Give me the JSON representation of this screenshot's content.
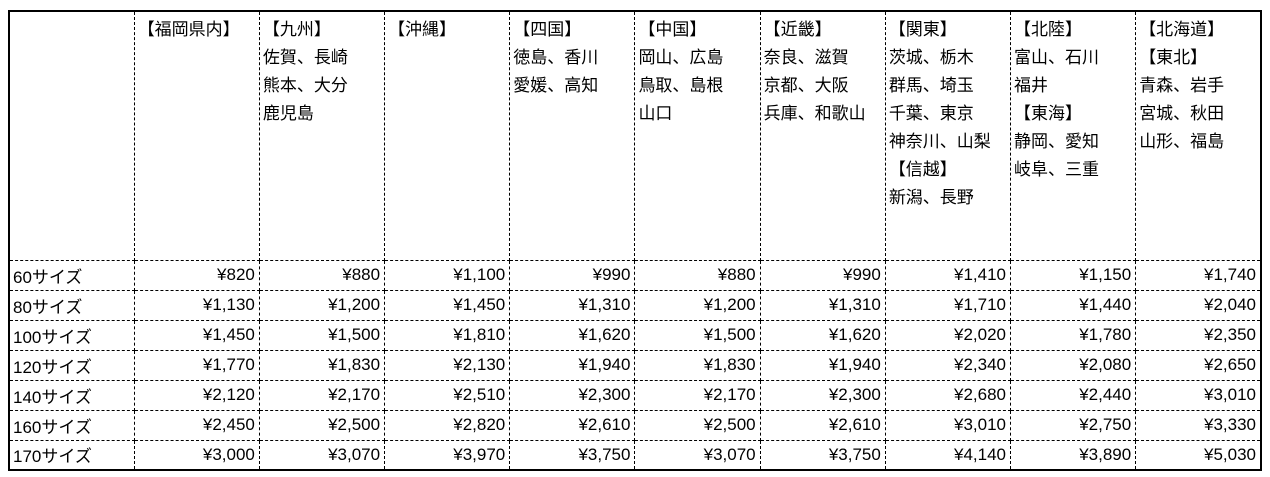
{
  "colors": {
    "background": "#ffffff",
    "border": "#000000",
    "text": "#000000"
  },
  "chart_data": {
    "type": "table",
    "corner_label": "",
    "region_columns": [
      {
        "name": "fukuoka",
        "lines": [
          "【福岡県内】"
        ]
      },
      {
        "name": "kyushu",
        "lines": [
          "【九州】",
          "佐賀、長崎",
          "熊本、大分",
          "鹿児島"
        ]
      },
      {
        "name": "okinawa",
        "lines": [
          "【沖縄】"
        ]
      },
      {
        "name": "shikoku",
        "lines": [
          "【四国】",
          "徳島、香川",
          "愛媛、高知"
        ]
      },
      {
        "name": "chugoku",
        "lines": [
          "【中国】",
          "岡山、広島",
          "鳥取、島根",
          "山口"
        ]
      },
      {
        "name": "kinki",
        "lines": [
          "【近畿】",
          "奈良、滋賀",
          "京都、大阪",
          "兵庫、和歌山"
        ]
      },
      {
        "name": "kanto-shinetsu",
        "lines": [
          "【関東】",
          "茨城、栃木",
          "群馬、埼玉",
          "千葉、東京",
          "神奈川、山梨",
          "【信越】",
          "新潟、長野"
        ]
      },
      {
        "name": "hokuriku-tokai",
        "lines": [
          "【北陸】",
          "富山、石川",
          "福井",
          "【東海】",
          "静岡、愛知",
          "岐阜、三重"
        ]
      },
      {
        "name": "hokkaido-tohoku",
        "lines": [
          "【北海道】",
          "【東北】",
          "青森、岩手",
          "宮城、秋田",
          "山形、福島"
        ]
      }
    ],
    "size_rows": [
      {
        "label": "60サイズ",
        "prices": [
          "¥820",
          "¥880",
          "¥1,100",
          "¥990",
          "¥880",
          "¥990",
          "¥1,410",
          "¥1,150",
          "¥1,740"
        ]
      },
      {
        "label": "80サイズ",
        "prices": [
          "¥1,130",
          "¥1,200",
          "¥1,450",
          "¥1,310",
          "¥1,200",
          "¥1,310",
          "¥1,710",
          "¥1,440",
          "¥2,040"
        ]
      },
      {
        "label": "100サイズ",
        "prices": [
          "¥1,450",
          "¥1,500",
          "¥1,810",
          "¥1,620",
          "¥1,500",
          "¥1,620",
          "¥2,020",
          "¥1,780",
          "¥2,350"
        ]
      },
      {
        "label": "120サイズ",
        "prices": [
          "¥1,770",
          "¥1,830",
          "¥2,130",
          "¥1,940",
          "¥1,830",
          "¥1,940",
          "¥2,340",
          "¥2,080",
          "¥2,650"
        ]
      },
      {
        "label": "140サイズ",
        "prices": [
          "¥2,120",
          "¥2,170",
          "¥2,510",
          "¥2,300",
          "¥2,170",
          "¥2,300",
          "¥2,680",
          "¥2,440",
          "¥3,010"
        ]
      },
      {
        "label": "160サイズ",
        "prices": [
          "¥2,450",
          "¥2,500",
          "¥2,820",
          "¥2,610",
          "¥2,500",
          "¥2,610",
          "¥3,010",
          "¥2,750",
          "¥3,330"
        ]
      },
      {
        "label": "170サイズ",
        "prices": [
          "¥3,000",
          "¥3,070",
          "¥3,970",
          "¥3,750",
          "¥3,070",
          "¥3,750",
          "¥4,140",
          "¥3,890",
          "¥5,030"
        ]
      }
    ]
  }
}
